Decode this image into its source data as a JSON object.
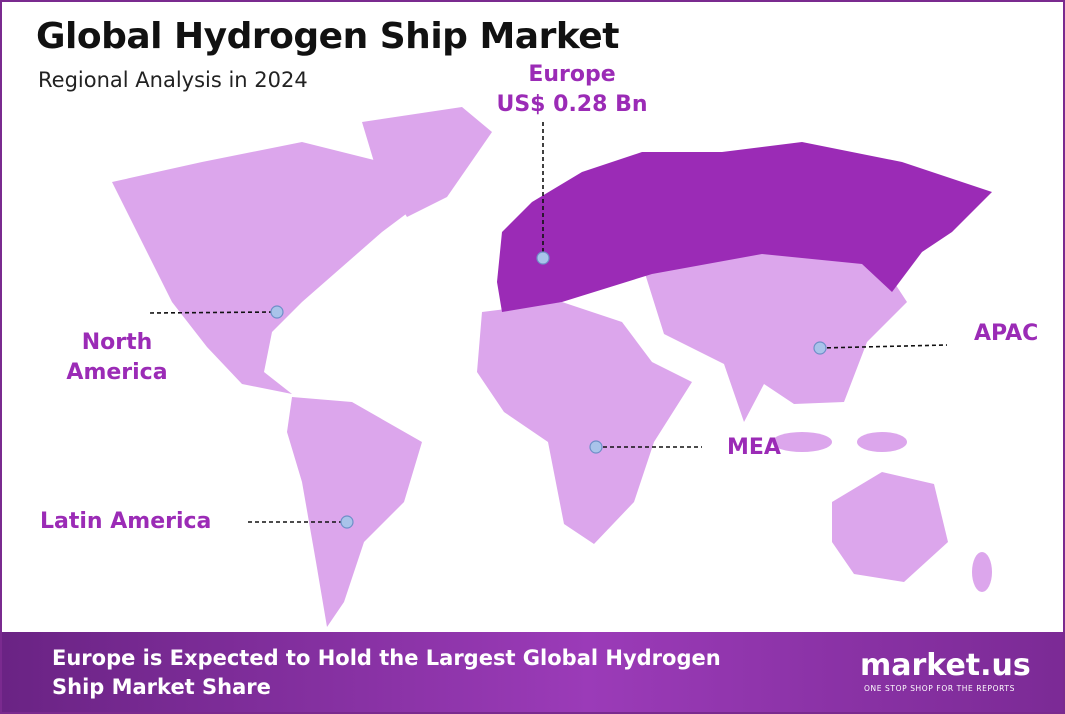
{
  "header": {
    "title": "Global Hydrogen Ship Market",
    "subtitle": "Regional Analysis in 2024"
  },
  "regions": [
    {
      "name": "Europe",
      "value": "US$ 0.28 Bn"
    },
    {
      "name": "North America"
    },
    {
      "name": "Latin America"
    },
    {
      "name": "MEA"
    },
    {
      "name": "APAC"
    }
  ],
  "footer": {
    "text": "Europe is Expected to Hold the Largest Global Hydrogen Ship Market Share",
    "brand": "market.us",
    "tagline": "ONE STOP SHOP FOR THE REPORTS"
  }
}
